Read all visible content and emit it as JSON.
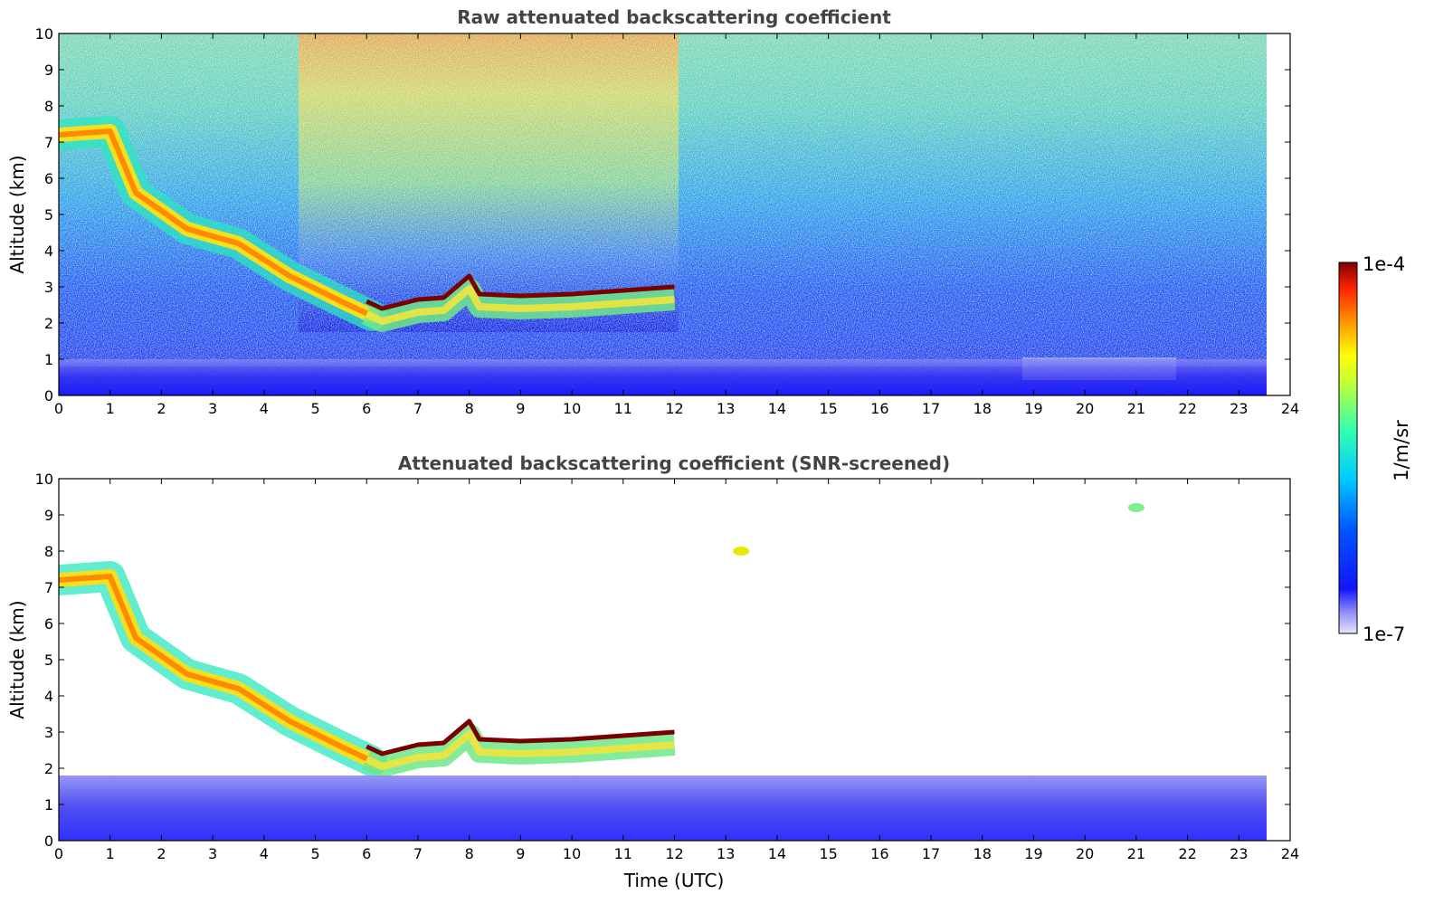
{
  "chart_data": [
    {
      "type": "heatmap",
      "title": "Raw attenuated backscattering coefficient",
      "ylabel": "Altitude (km)",
      "xlabel": "",
      "xlim": [
        0,
        24
      ],
      "ylim": [
        0,
        10
      ],
      "xticks": [
        "0",
        "1",
        "2",
        "3",
        "4",
        "5",
        "6",
        "7",
        "8",
        "9",
        "10",
        "11",
        "12",
        "13",
        "14",
        "15",
        "16",
        "17",
        "18",
        "19",
        "20",
        "21",
        "22",
        "23",
        "24"
      ],
      "yticks": [
        "0",
        "1",
        "2",
        "3",
        "4",
        "5",
        "6",
        "7",
        "8",
        "9",
        "10"
      ],
      "data_end_time": 23.55,
      "features": [
        {
          "name": "cirrus_descending",
          "points": [
            [
              0.0,
              7.2
            ],
            [
              1.0,
              7.3
            ],
            [
              1.5,
              5.6
            ],
            [
              2.5,
              4.6
            ],
            [
              3.5,
              4.2
            ],
            [
              4.5,
              3.3
            ],
            [
              5.5,
              2.6
            ],
            [
              6.1,
              2.2
            ]
          ],
          "intensity": "high"
        },
        {
          "name": "cloud_top_layer",
          "points": [
            [
              6.0,
              2.6
            ],
            [
              6.3,
              2.4
            ],
            [
              7.0,
              2.65
            ],
            [
              7.5,
              2.7
            ],
            [
              8.0,
              3.3
            ],
            [
              8.2,
              2.8
            ],
            [
              9.0,
              2.75
            ],
            [
              10.0,
              2.8
            ],
            [
              11.0,
              2.9
            ],
            [
              12.0,
              3.0
            ]
          ],
          "intensity": "saturated"
        },
        {
          "name": "boundary_layer",
          "range_km": [
            0,
            1.0
          ],
          "intensity": "low"
        }
      ]
    },
    {
      "type": "heatmap",
      "title": "Attenuated backscattering coefficient (SNR-screened)",
      "ylabel": "Altitude (km)",
      "xlabel": "Time (UTC)",
      "xlim": [
        0,
        24
      ],
      "ylim": [
        0,
        10
      ],
      "xticks": [
        "0",
        "1",
        "2",
        "3",
        "4",
        "5",
        "6",
        "7",
        "8",
        "9",
        "10",
        "11",
        "12",
        "13",
        "14",
        "15",
        "16",
        "17",
        "18",
        "19",
        "20",
        "21",
        "22",
        "23",
        "24"
      ],
      "yticks": [
        "0",
        "1",
        "2",
        "3",
        "4",
        "5",
        "6",
        "7",
        "8",
        "9",
        "10"
      ],
      "data_end_time": 23.55,
      "features": [
        {
          "name": "cirrus_descending",
          "points": [
            [
              0.0,
              7.2
            ],
            [
              1.0,
              7.3
            ],
            [
              1.5,
              5.6
            ],
            [
              2.5,
              4.6
            ],
            [
              3.5,
              4.2
            ],
            [
              4.5,
              3.3
            ],
            [
              5.5,
              2.6
            ],
            [
              6.1,
              2.2
            ]
          ],
          "intensity": "high"
        },
        {
          "name": "cloud_top_layer",
          "points": [
            [
              6.0,
              2.6
            ],
            [
              6.3,
              2.4
            ],
            [
              7.0,
              2.65
            ],
            [
              7.5,
              2.7
            ],
            [
              8.0,
              3.3
            ],
            [
              8.2,
              2.8
            ],
            [
              9.0,
              2.75
            ],
            [
              10.0,
              2.8
            ],
            [
              11.0,
              2.9
            ],
            [
              12.0,
              3.0
            ]
          ],
          "intensity": "saturated"
        },
        {
          "name": "boundary_layer",
          "range_km": [
            0,
            1.8
          ],
          "intensity": "low"
        },
        {
          "name": "isolated_cloud",
          "points": [
            [
              13.3,
              8.0
            ]
          ],
          "intensity": "medium"
        },
        {
          "name": "isolated_cloud",
          "points": [
            [
              21.0,
              9.2
            ]
          ],
          "intensity": "low"
        }
      ]
    }
  ],
  "colorbar": {
    "label": "1/m/sr",
    "max_label": "1e-4",
    "min_label": "1e-7",
    "scale": "log",
    "colormap": "jet"
  }
}
